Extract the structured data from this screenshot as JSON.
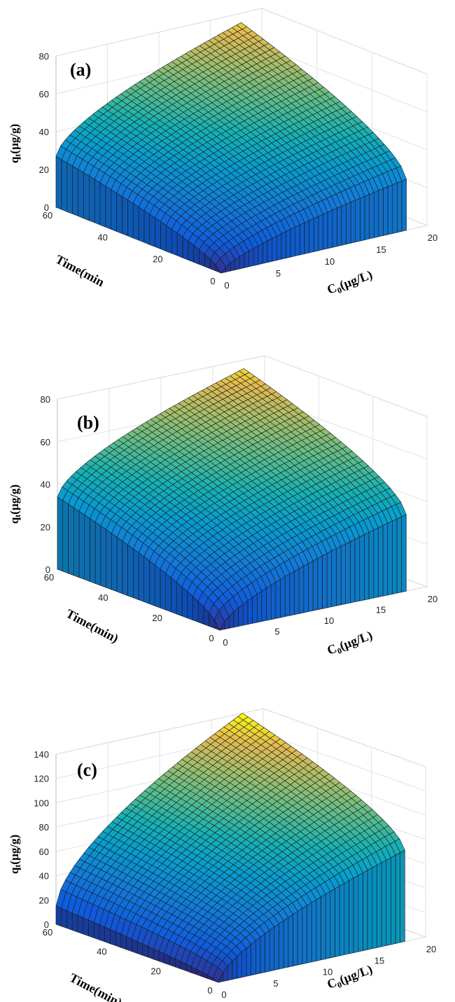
{
  "chart_data": [
    {
      "type": "surface",
      "panel_label": "(a)",
      "zlabel": "q",
      "zlabel_sub": "t",
      "zlabel_units": "(µg/g)",
      "ylabel": "Time(min",
      "xlabel": "C",
      "xlabel_sub": "0",
      "xlabel_units": "(µg/L)",
      "x_range": [
        0,
        20
      ],
      "x_ticks": [
        "0",
        "5",
        "10",
        "15",
        "20"
      ],
      "y_range": [
        0,
        60
      ],
      "y_ticks": [
        "0",
        "20",
        "40",
        "60"
      ],
      "z_range": [
        0,
        80
      ],
      "z_ticks": [
        "0",
        "20",
        "40",
        "60",
        "80"
      ],
      "x_data_range": [
        0,
        18
      ],
      "y_data_range": [
        0,
        60
      ],
      "z_base": 0,
      "z_peak": 75,
      "z_corners": {
        "max_x_min_t": 27,
        "min_x_max_t": 27
      },
      "colormap": "parula"
    },
    {
      "type": "surface",
      "panel_label": "(b)",
      "zlabel": "q",
      "zlabel_sub": "t",
      "zlabel_units": "(µg/g)",
      "ylabel": "Time(min)",
      "xlabel": "C",
      "xlabel_sub": "0",
      "xlabel_units": "(µg/L)",
      "x_range": [
        0,
        20
      ],
      "x_ticks": [
        "0",
        "5",
        "10",
        "15",
        "20"
      ],
      "y_range": [
        0,
        60
      ],
      "y_ticks": [
        "0",
        "20",
        "40",
        "60"
      ],
      "z_range": [
        0,
        80
      ],
      "z_ticks": [
        "0",
        "20",
        "40",
        "60",
        "80"
      ],
      "x_data_range": [
        0,
        18
      ],
      "y_data_range": [
        0,
        60
      ],
      "z_base": 0,
      "z_peak": 76,
      "z_corners": {
        "max_x_min_t": 36,
        "min_x_max_t": 34
      },
      "colormap": "parula"
    },
    {
      "type": "surface",
      "panel_label": "(c)",
      "zlabel": "q",
      "zlabel_sub": "t",
      "zlabel_units": "(µg/g)",
      "ylabel": "Time(min)",
      "xlabel": "C",
      "xlabel_sub": "0",
      "xlabel_units": "(µg/L)",
      "x_range": [
        0,
        20
      ],
      "x_ticks": [
        "0",
        "5",
        "10",
        "15",
        "20"
      ],
      "y_range": [
        0,
        60
      ],
      "y_ticks": [
        "0",
        "20",
        "40",
        "60"
      ],
      "z_range": [
        0,
        140
      ],
      "z_ticks": [
        "0",
        "20",
        "40",
        "60",
        "80",
        "100",
        "120",
        "140"
      ],
      "x_data_range": [
        0,
        18
      ],
      "y_data_range": [
        0,
        60
      ],
      "z_base": 0,
      "z_peak": 140,
      "z_corners": {
        "max_x_min_t": 75,
        "min_x_max_t": 15
      },
      "colormap": "parula"
    }
  ]
}
